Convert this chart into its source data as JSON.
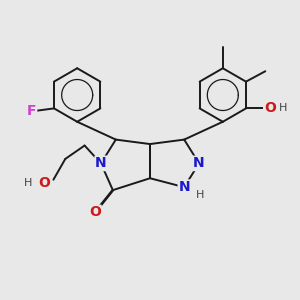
{
  "background_color": "#e8e8e8",
  "bond_color": "#1a1a1a",
  "bond_width": 1.4,
  "atom_colors": {
    "N": "#1a1acc",
    "O": "#cc1a1a",
    "F": "#cc44cc",
    "H": "#444444",
    "C": "#1a1a1a"
  },
  "figsize": [
    3.0,
    3.0
  ],
  "dpi": 100
}
